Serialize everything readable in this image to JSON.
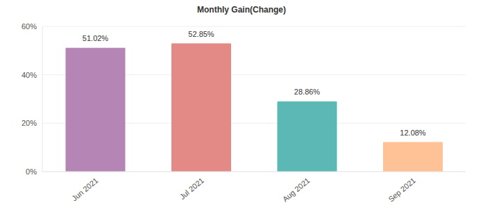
{
  "chart_data": {
    "type": "bar",
    "title": "Monthly Gain(Change)",
    "categories": [
      "Jun 2021",
      "Jul 2021",
      "Aug 2021",
      "Sep 2021"
    ],
    "values": [
      51.02,
      52.85,
      28.86,
      12.08
    ],
    "value_labels": [
      "51.02%",
      "52.85%",
      "28.86%",
      "12.08%"
    ],
    "colors": [
      "#b585b6",
      "#e48a86",
      "#5bb8b5",
      "#ffc196"
    ],
    "ylim": [
      0,
      60
    ],
    "yticks": [
      {
        "value": 0,
        "label": "0%"
      },
      {
        "value": 20,
        "label": "20%"
      },
      {
        "value": 40,
        "label": "40%"
      },
      {
        "value": 60,
        "label": "60%"
      }
    ],
    "grid": true,
    "data_labels": true
  }
}
